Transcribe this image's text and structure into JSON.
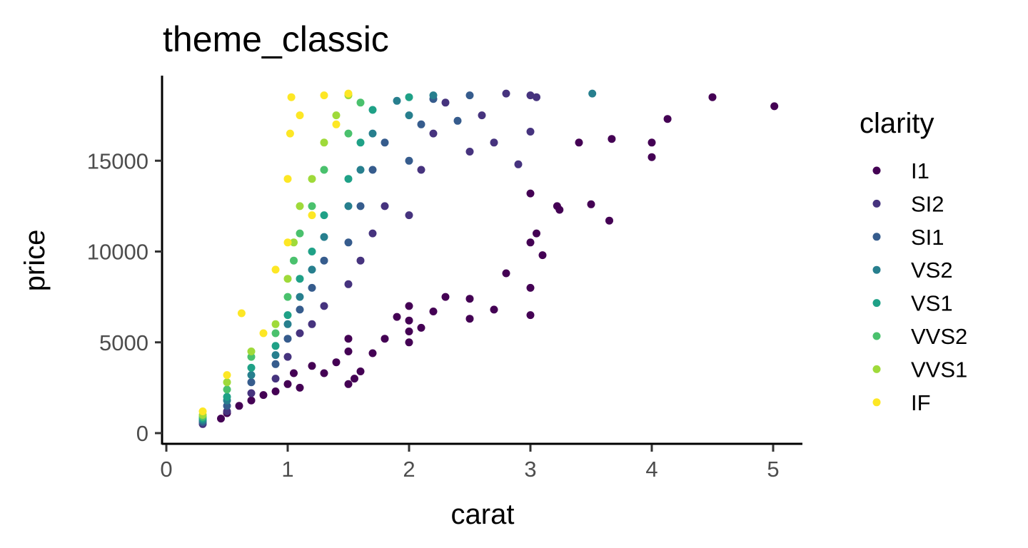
{
  "chart_data": {
    "type": "scatter",
    "title": "theme_classic",
    "xlabel": "carat",
    "ylabel": "price",
    "xlim": [
      0,
      5.2
    ],
    "ylim": [
      0,
      19000
    ],
    "xticks": [
      "0",
      "1",
      "2",
      "3",
      "4",
      "5"
    ],
    "yticks": [
      "0",
      "5000",
      "10000",
      "15000"
    ],
    "grid": false,
    "legend": {
      "title": "clarity",
      "placement": "right",
      "entries": [
        "I1",
        "SI2",
        "SI1",
        "VS2",
        "VS1",
        "VVS2",
        "VVS1",
        "IF"
      ],
      "colors": [
        "#440154",
        "#46337E",
        "#365C8D",
        "#277F8E",
        "#1FA187",
        "#4AC16D",
        "#9FDA3A",
        "#FDE725"
      ]
    },
    "series": [
      {
        "name": "I1",
        "color": "#440154",
        "points": [
          [
            0.45,
            800
          ],
          [
            0.5,
            1100
          ],
          [
            0.6,
            1500
          ],
          [
            0.7,
            1800
          ],
          [
            0.8,
            2100
          ],
          [
            0.9,
            2300
          ],
          [
            1.0,
            2700
          ],
          [
            1.05,
            3300
          ],
          [
            1.1,
            2500
          ],
          [
            1.2,
            3700
          ],
          [
            1.3,
            3300
          ],
          [
            1.4,
            3900
          ],
          [
            1.5,
            2700
          ],
          [
            1.5,
            4500
          ],
          [
            1.5,
            5200
          ],
          [
            1.55,
            3000
          ],
          [
            1.6,
            3400
          ],
          [
            1.7,
            4400
          ],
          [
            1.8,
            5200
          ],
          [
            1.9,
            6400
          ],
          [
            2.0,
            5000
          ],
          [
            2.0,
            5600
          ],
          [
            2.0,
            6200
          ],
          [
            2.0,
            7000
          ],
          [
            2.1,
            5800
          ],
          [
            2.2,
            6700
          ],
          [
            2.3,
            7500
          ],
          [
            2.5,
            6300
          ],
          [
            2.5,
            7400
          ],
          [
            2.7,
            6800
          ],
          [
            2.8,
            8800
          ],
          [
            3.0,
            6500
          ],
          [
            3.0,
            8000
          ],
          [
            3.0,
            10500
          ],
          [
            3.0,
            13200
          ],
          [
            3.05,
            11000
          ],
          [
            3.1,
            9800
          ],
          [
            3.22,
            12500
          ],
          [
            3.24,
            12300
          ],
          [
            3.4,
            16000
          ],
          [
            3.5,
            12600
          ],
          [
            3.65,
            11700
          ],
          [
            3.67,
            16200
          ],
          [
            4.0,
            15200
          ],
          [
            4.0,
            16000
          ],
          [
            4.13,
            17300
          ],
          [
            4.5,
            18500
          ],
          [
            5.01,
            18000
          ]
        ]
      },
      {
        "name": "SI2",
        "color": "#46337E",
        "points": [
          [
            0.3,
            500
          ],
          [
            0.5,
            1200
          ],
          [
            0.7,
            2200
          ],
          [
            0.9,
            3000
          ],
          [
            1.0,
            4200
          ],
          [
            1.1,
            5500
          ],
          [
            1.2,
            6000
          ],
          [
            1.3,
            7000
          ],
          [
            1.5,
            8200
          ],
          [
            1.6,
            9500
          ],
          [
            1.7,
            11000
          ],
          [
            1.8,
            12500
          ],
          [
            2.0,
            12000
          ],
          [
            2.1,
            14500
          ],
          [
            2.2,
            16500
          ],
          [
            2.3,
            18200
          ],
          [
            2.5,
            15500
          ],
          [
            2.6,
            17500
          ],
          [
            2.7,
            16000
          ],
          [
            2.8,
            18700
          ],
          [
            2.9,
            14800
          ],
          [
            3.0,
            16600
          ],
          [
            3.0,
            18600
          ],
          [
            3.05,
            18500
          ]
        ]
      },
      {
        "name": "SI1",
        "color": "#365C8D",
        "points": [
          [
            0.3,
            600
          ],
          [
            0.5,
            1500
          ],
          [
            0.7,
            2800
          ],
          [
            0.9,
            3800
          ],
          [
            1.0,
            5200
          ],
          [
            1.1,
            6800
          ],
          [
            1.2,
            8000
          ],
          [
            1.3,
            9500
          ],
          [
            1.5,
            10500
          ],
          [
            1.6,
            12500
          ],
          [
            1.7,
            14500
          ],
          [
            1.8,
            16000
          ],
          [
            2.0,
            15000
          ],
          [
            2.1,
            17000
          ],
          [
            2.2,
            18400
          ],
          [
            2.4,
            17200
          ],
          [
            2.5,
            18600
          ]
        ]
      },
      {
        "name": "VS2",
        "color": "#277F8E",
        "points": [
          [
            0.3,
            700
          ],
          [
            0.5,
            1800
          ],
          [
            0.7,
            3200
          ],
          [
            0.9,
            4300
          ],
          [
            1.0,
            6000
          ],
          [
            1.1,
            7500
          ],
          [
            1.2,
            9000
          ],
          [
            1.3,
            10800
          ],
          [
            1.5,
            12500
          ],
          [
            1.6,
            14500
          ],
          [
            1.7,
            16500
          ],
          [
            1.9,
            18300
          ],
          [
            2.0,
            17500
          ],
          [
            2.2,
            18600
          ],
          [
            3.51,
            18700
          ]
        ]
      },
      {
        "name": "VS1",
        "color": "#1FA187",
        "points": [
          [
            0.3,
            800
          ],
          [
            0.5,
            2000
          ],
          [
            0.7,
            3600
          ],
          [
            0.9,
            4800
          ],
          [
            1.0,
            6500
          ],
          [
            1.1,
            8500
          ],
          [
            1.2,
            10000
          ],
          [
            1.3,
            12000
          ],
          [
            1.5,
            14000
          ],
          [
            1.6,
            16000
          ],
          [
            1.7,
            17800
          ],
          [
            2.0,
            18500
          ]
        ]
      },
      {
        "name": "VVS2",
        "color": "#4AC16D",
        "points": [
          [
            0.3,
            900
          ],
          [
            0.5,
            2400
          ],
          [
            0.7,
            4200
          ],
          [
            0.9,
            5500
          ],
          [
            1.0,
            7500
          ],
          [
            1.05,
            9500
          ],
          [
            1.1,
            11000
          ],
          [
            1.2,
            12500
          ],
          [
            1.3,
            14500
          ],
          [
            1.5,
            16500
          ],
          [
            1.6,
            18200
          ]
        ]
      },
      {
        "name": "VVS1",
        "color": "#9FDA3A",
        "points": [
          [
            0.3,
            1000
          ],
          [
            0.5,
            2800
          ],
          [
            0.7,
            4500
          ],
          [
            0.9,
            6000
          ],
          [
            1.0,
            8500
          ],
          [
            1.05,
            10500
          ],
          [
            1.1,
            12500
          ],
          [
            1.2,
            14000
          ],
          [
            1.3,
            16000
          ],
          [
            1.4,
            17500
          ],
          [
            1.5,
            18600
          ]
        ]
      },
      {
        "name": "IF",
        "color": "#FDE725",
        "points": [
          [
            0.3,
            1200
          ],
          [
            0.5,
            3200
          ],
          [
            0.62,
            6600
          ],
          [
            0.8,
            5500
          ],
          [
            0.9,
            9000
          ],
          [
            1.0,
            10500
          ],
          [
            1.0,
            14000
          ],
          [
            1.02,
            16500
          ],
          [
            1.03,
            18500
          ],
          [
            1.1,
            17500
          ],
          [
            1.2,
            12000
          ],
          [
            1.3,
            18600
          ],
          [
            1.4,
            17000
          ],
          [
            1.5,
            18700
          ]
        ]
      }
    ]
  }
}
